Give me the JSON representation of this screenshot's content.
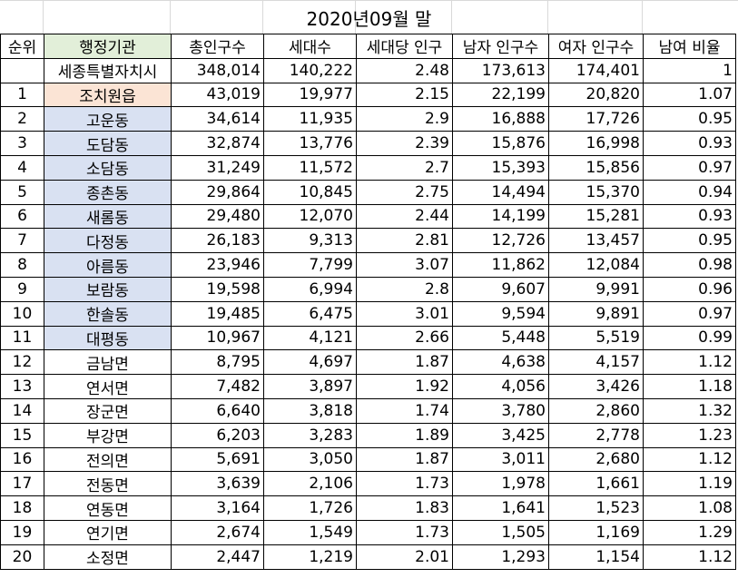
{
  "title": "2020년09월 말",
  "headers": [
    "순위",
    "행정기관",
    "총인구수",
    "세대수",
    "세대당 인구",
    "남자 인구수",
    "여자 인구수",
    "남여 비율"
  ],
  "rows": [
    {
      "rank": "",
      "org": "세종특별자치시",
      "pop": "348,014",
      "hh": "140,222",
      "per": "2.48",
      "male": "173,613",
      "female": "174,401",
      "ratio": "1",
      "fill": ""
    },
    {
      "rank": "1",
      "org": "조치원읍",
      "pop": "43,019",
      "hh": "19,977",
      "per": "2.15",
      "male": "22,199",
      "female": "20,820",
      "ratio": "1.07",
      "fill": "peach"
    },
    {
      "rank": "2",
      "org": "고운동",
      "pop": "34,614",
      "hh": "11,935",
      "per": "2.9",
      "male": "16,888",
      "female": "17,726",
      "ratio": "0.95",
      "fill": "blue"
    },
    {
      "rank": "3",
      "org": "도담동",
      "pop": "32,874",
      "hh": "13,776",
      "per": "2.39",
      "male": "15,876",
      "female": "16,998",
      "ratio": "0.93",
      "fill": "blue"
    },
    {
      "rank": "4",
      "org": "소담동",
      "pop": "31,249",
      "hh": "11,572",
      "per": "2.7",
      "male": "15,393",
      "female": "15,856",
      "ratio": "0.97",
      "fill": "blue"
    },
    {
      "rank": "5",
      "org": "종촌동",
      "pop": "29,864",
      "hh": "10,845",
      "per": "2.75",
      "male": "14,494",
      "female": "15,370",
      "ratio": "0.94",
      "fill": "blue"
    },
    {
      "rank": "6",
      "org": "새롬동",
      "pop": "29,480",
      "hh": "12,070",
      "per": "2.44",
      "male": "14,199",
      "female": "15,281",
      "ratio": "0.93",
      "fill": "blue"
    },
    {
      "rank": "7",
      "org": "다정동",
      "pop": "26,183",
      "hh": "9,313",
      "per": "2.81",
      "male": "12,726",
      "female": "13,457",
      "ratio": "0.95",
      "fill": "blue"
    },
    {
      "rank": "8",
      "org": "아름동",
      "pop": "23,946",
      "hh": "7,799",
      "per": "3.07",
      "male": "11,862",
      "female": "12,084",
      "ratio": "0.98",
      "fill": "blue"
    },
    {
      "rank": "9",
      "org": "보람동",
      "pop": "19,598",
      "hh": "6,994",
      "per": "2.8",
      "male": "9,607",
      "female": "9,991",
      "ratio": "0.96",
      "fill": "blue"
    },
    {
      "rank": "10",
      "org": "한솔동",
      "pop": "19,485",
      "hh": "6,475",
      "per": "3.01",
      "male": "9,594",
      "female": "9,891",
      "ratio": "0.97",
      "fill": "blue"
    },
    {
      "rank": "11",
      "org": "대평동",
      "pop": "10,967",
      "hh": "4,121",
      "per": "2.66",
      "male": "5,448",
      "female": "5,519",
      "ratio": "0.99",
      "fill": "blue"
    },
    {
      "rank": "12",
      "org": "금남면",
      "pop": "8,795",
      "hh": "4,697",
      "per": "1.87",
      "male": "4,638",
      "female": "4,157",
      "ratio": "1.12",
      "fill": ""
    },
    {
      "rank": "13",
      "org": "연서면",
      "pop": "7,482",
      "hh": "3,897",
      "per": "1.92",
      "male": "4,056",
      "female": "3,426",
      "ratio": "1.18",
      "fill": ""
    },
    {
      "rank": "14",
      "org": "장군면",
      "pop": "6,640",
      "hh": "3,818",
      "per": "1.74",
      "male": "3,780",
      "female": "2,860",
      "ratio": "1.32",
      "fill": ""
    },
    {
      "rank": "15",
      "org": "부강면",
      "pop": "6,203",
      "hh": "3,283",
      "per": "1.89",
      "male": "3,425",
      "female": "2,778",
      "ratio": "1.23",
      "fill": ""
    },
    {
      "rank": "16",
      "org": "전의면",
      "pop": "5,691",
      "hh": "3,050",
      "per": "1.87",
      "male": "3,011",
      "female": "2,680",
      "ratio": "1.12",
      "fill": ""
    },
    {
      "rank": "17",
      "org": "전동면",
      "pop": "3,639",
      "hh": "2,106",
      "per": "1.73",
      "male": "1,978",
      "female": "1,661",
      "ratio": "1.19",
      "fill": ""
    },
    {
      "rank": "18",
      "org": "연동면",
      "pop": "3,164",
      "hh": "1,726",
      "per": "1.83",
      "male": "1,641",
      "female": "1,523",
      "ratio": "1.08",
      "fill": ""
    },
    {
      "rank": "19",
      "org": "연기면",
      "pop": "2,674",
      "hh": "1,549",
      "per": "1.73",
      "male": "1,505",
      "female": "1,169",
      "ratio": "1.29",
      "fill": ""
    },
    {
      "rank": "20",
      "org": "소정면",
      "pop": "2,447",
      "hh": "1,219",
      "per": "2.01",
      "male": "1,293",
      "female": "1,154",
      "ratio": "1.12",
      "fill": ""
    }
  ],
  "colors": {
    "header_org_fill": "#e2efd9",
    "peach_fill": "#fbe4d5",
    "blue_fill": "#d9e1f2"
  }
}
